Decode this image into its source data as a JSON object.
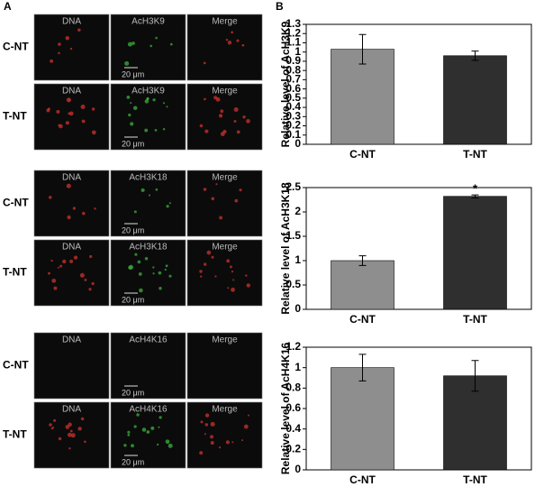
{
  "panel_a": {
    "label": "A",
    "groups": [
      {
        "rows": [
          "C-NT",
          "T-NT"
        ],
        "columns": [
          "DNA",
          "AcH3K9",
          "Merge"
        ],
        "scale_bar": "20 μm"
      },
      {
        "rows": [
          "C-NT",
          "T-NT"
        ],
        "columns": [
          "DNA",
          "AcH3K18",
          "Merge"
        ],
        "scale_bar": "20 μm"
      },
      {
        "rows": [
          "C-NT",
          "T-NT"
        ],
        "columns": [
          "DNA",
          "AcH4K16",
          "Merge"
        ],
        "scale_bar": "20 μm"
      }
    ]
  },
  "panel_b": {
    "label": "B"
  },
  "chart_data": [
    {
      "type": "bar",
      "y_label": "Relative level of AcH3K9",
      "categories": [
        "C-NT",
        "T-NT"
      ],
      "values": [
        1.03,
        0.96
      ],
      "errors": [
        0.16,
        0.05
      ],
      "colors": [
        "#8e8e8e",
        "#2f2f2f"
      ],
      "ylim": [
        0,
        1.3
      ],
      "yticks": [
        0,
        0.1,
        0.2,
        0.3,
        0.4,
        0.5,
        0.6,
        0.7,
        0.8,
        0.9,
        1,
        1.1,
        1.2,
        1.3
      ]
    },
    {
      "type": "bar",
      "y_label": "Relative level of AcH3K18",
      "categories": [
        "C-NT",
        "T-NT"
      ],
      "values": [
        1.0,
        2.32
      ],
      "errors": [
        0.1,
        0.03
      ],
      "colors": [
        "#8e8e8e",
        "#2f2f2f"
      ],
      "ylim": [
        0,
        2.5
      ],
      "yticks": [
        0,
        0.5,
        1,
        1.5,
        2,
        2.5
      ],
      "annotation": "*"
    },
    {
      "type": "bar",
      "y_label": "Relative level of AcH4K16",
      "categories": [
        "C-NT",
        "T-NT"
      ],
      "values": [
        1.0,
        0.92
      ],
      "errors": [
        0.13,
        0.15
      ],
      "colors": [
        "#8e8e8e",
        "#2f2f2f"
      ],
      "ylim": [
        0,
        1.2
      ],
      "yticks": [
        0,
        0.2,
        0.4,
        0.6,
        0.8,
        1,
        1.2
      ]
    }
  ]
}
